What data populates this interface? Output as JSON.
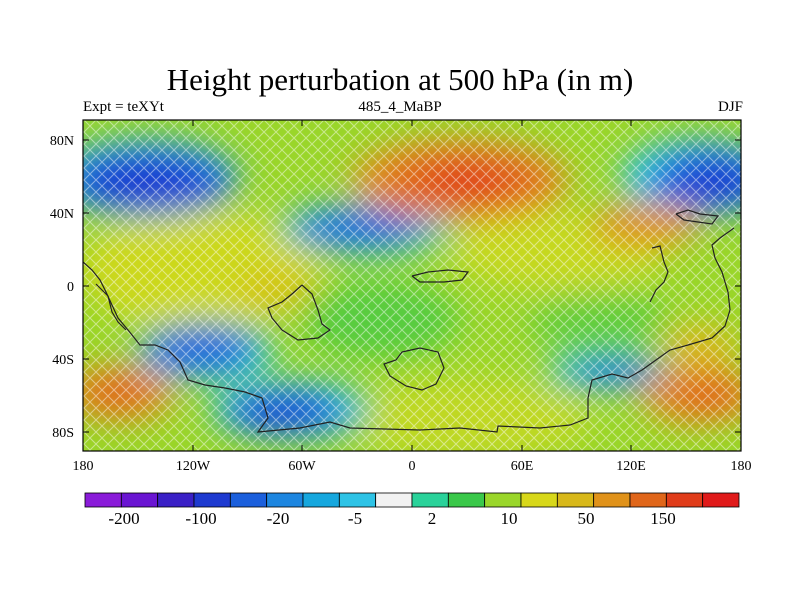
{
  "title": "Height perturbation at 500 hPa (in m)",
  "subtitle_left": "Expt = teXYt",
  "subtitle_center": "485_4_MaBP",
  "subtitle_right": "DJF",
  "x_ticks": [
    "180",
    "120W",
    "60W",
    "0",
    "60E",
    "120E",
    "180"
  ],
  "y_ticks": [
    "80N",
    "40N",
    "0",
    "40S",
    "80S"
  ],
  "colorbar": {
    "colors": [
      "#8a1bd9",
      "#6a15d2",
      "#3a20c6",
      "#1e3ad0",
      "#1b5fdc",
      "#1d86e0",
      "#16a7de",
      "#2ec3e6",
      "#f2f2f2",
      "#2ad29a",
      "#3ac84a",
      "#9ad62a",
      "#d8d81a",
      "#d8b81a",
      "#e0921a",
      "#e0661a",
      "#e03c1a",
      "#e01a1a"
    ],
    "labels": [
      "-200",
      "-100",
      "-20",
      "-5",
      "2",
      "10",
      "50",
      "150"
    ]
  }
}
